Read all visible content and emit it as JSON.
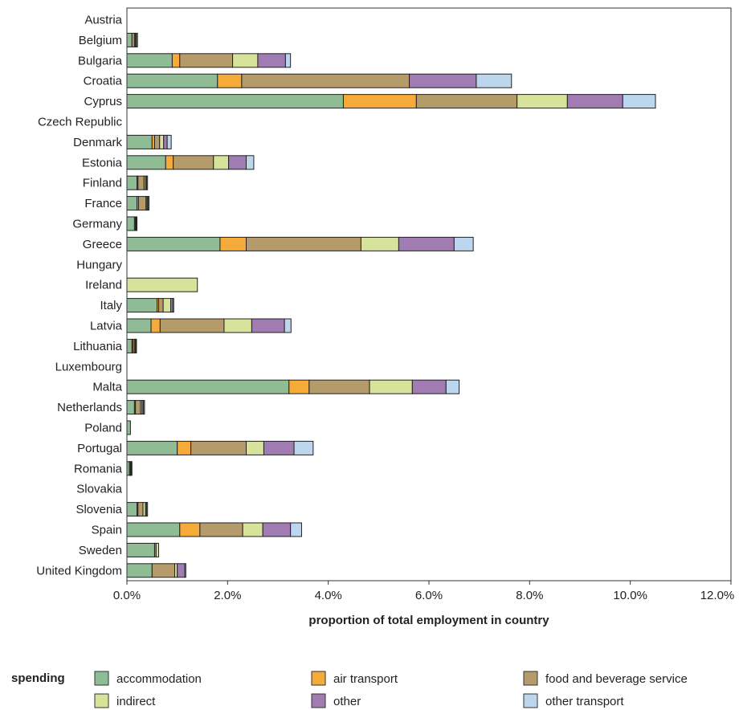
{
  "chart_data": {
    "type": "bar",
    "orientation": "horizontal",
    "stacked": true,
    "xlabel": "proportion of total employment in country",
    "xlim": [
      0,
      12
    ],
    "xticks": [
      "0.0%",
      "2.0%",
      "4.0%",
      "6.0%",
      "8.0%",
      "10.0%",
      "12.0%"
    ],
    "tick_values": [
      0,
      2,
      4,
      6,
      8,
      10,
      12
    ],
    "grid": false,
    "legend_title": "spending",
    "legend_position": "bottom",
    "categories": [
      "Austria",
      "Belgium",
      "Bulgaria",
      "Croatia",
      "Cyprus",
      "Czech Republic",
      "Denmark",
      "Estonia",
      "Finland",
      "France",
      "Germany",
      "Greece",
      "Hungary",
      "Ireland",
      "Italy",
      "Latvia",
      "Lithuania",
      "Luxembourg",
      "Malta",
      "Netherlands",
      "Poland",
      "Portugal",
      "Romania",
      "Slovakia",
      "Slovenia",
      "Spain",
      "Sweden",
      "United Kingdom"
    ],
    "series": [
      {
        "name": "accommodation",
        "color": "#8fbc94",
        "values": [
          0,
          0.1,
          0.9,
          1.8,
          4.3,
          0,
          0.5,
          0.77,
          0.2,
          0.2,
          0.15,
          1.85,
          0,
          0,
          0.6,
          0.48,
          0.1,
          0,
          3.22,
          0.15,
          0.07,
          1.0,
          0.05,
          0,
          0.2,
          1.05,
          0.55,
          0.5
        ]
      },
      {
        "name": "air transport",
        "color": "#f5aa3a",
        "values": [
          0,
          0,
          0.15,
          0.48,
          1.45,
          0,
          0.05,
          0.15,
          0.02,
          0.03,
          0,
          0.52,
          0,
          0,
          0.03,
          0.18,
          0.02,
          0,
          0.4,
          0.02,
          0,
          0.27,
          0,
          0,
          0.02,
          0.4,
          0,
          0
        ]
      },
      {
        "name": "food and beverage service",
        "color": "#b59b6a",
        "values": [
          0,
          0.05,
          1.05,
          3.33,
          2.0,
          0,
          0.1,
          0.8,
          0.12,
          0.15,
          0.02,
          2.28,
          0,
          0,
          0.09,
          1.27,
          0.03,
          0,
          1.2,
          0.1,
          0,
          1.1,
          0.02,
          0,
          0.1,
          0.85,
          0.03,
          0.45
        ]
      },
      {
        "name": "indirect",
        "color": "#d7e39a",
        "values": [
          0,
          0.02,
          0.5,
          0,
          1.0,
          0,
          0.08,
          0.3,
          0.03,
          0.02,
          0.01,
          0.75,
          0,
          1.4,
          0.15,
          0.55,
          0.02,
          0,
          0.85,
          0.03,
          0,
          0.35,
          0.01,
          0,
          0.05,
          0.4,
          0.05,
          0.05
        ]
      },
      {
        "name": "other",
        "color": "#a07cb3",
        "values": [
          0,
          0.02,
          0.55,
          1.33,
          1.1,
          0,
          0.07,
          0.35,
          0.02,
          0.02,
          0.01,
          1.1,
          0,
          0,
          0.04,
          0.65,
          0.01,
          0,
          0.67,
          0.03,
          0,
          0.6,
          0.01,
          0,
          0.02,
          0.55,
          0,
          0.15
        ]
      },
      {
        "name": "other transport",
        "color": "#bcd6ee",
        "values": [
          0,
          0.02,
          0.1,
          0.7,
          0.65,
          0,
          0.08,
          0.15,
          0.02,
          0.02,
          0.01,
          0.38,
          0,
          0,
          0.02,
          0.13,
          0.01,
          0,
          0.26,
          0.02,
          0,
          0.38,
          0.01,
          0,
          0.02,
          0.22,
          0,
          0.02
        ]
      }
    ]
  }
}
